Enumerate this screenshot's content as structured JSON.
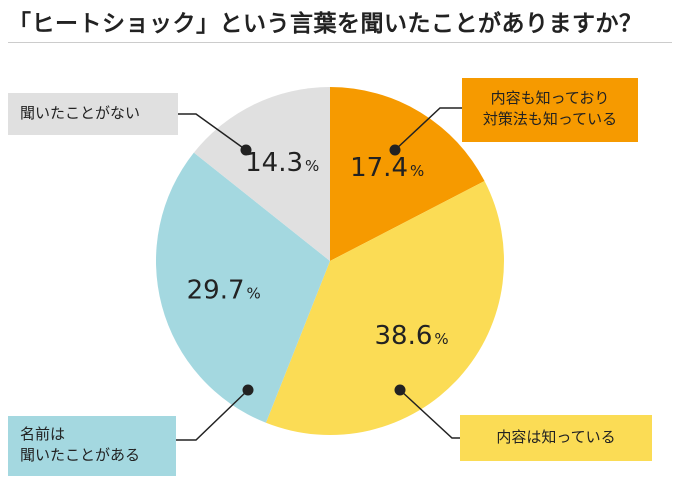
{
  "title": "「ヒートショック」という言葉を聞いたことがありますか？",
  "chart_data": {
    "type": "pie",
    "start": "12 o'clock, clockwise",
    "slices": [
      {
        "label_lines": [
          "内容も知っており",
          "対策法も知っている"
        ],
        "value": 17.4,
        "color": "#f69a00"
      },
      {
        "label_lines": [
          "内容は知っている"
        ],
        "value": 38.6,
        "color": "#fbdc55"
      },
      {
        "label_lines": [
          "名前は",
          "聞いたことがある"
        ],
        "value": 29.7,
        "color": "#a4d8e0"
      },
      {
        "label_lines": [
          "聞いたことがない"
        ],
        "value": 14.3,
        "color": "#e0e0e0"
      }
    ],
    "value_suffix": "%"
  }
}
